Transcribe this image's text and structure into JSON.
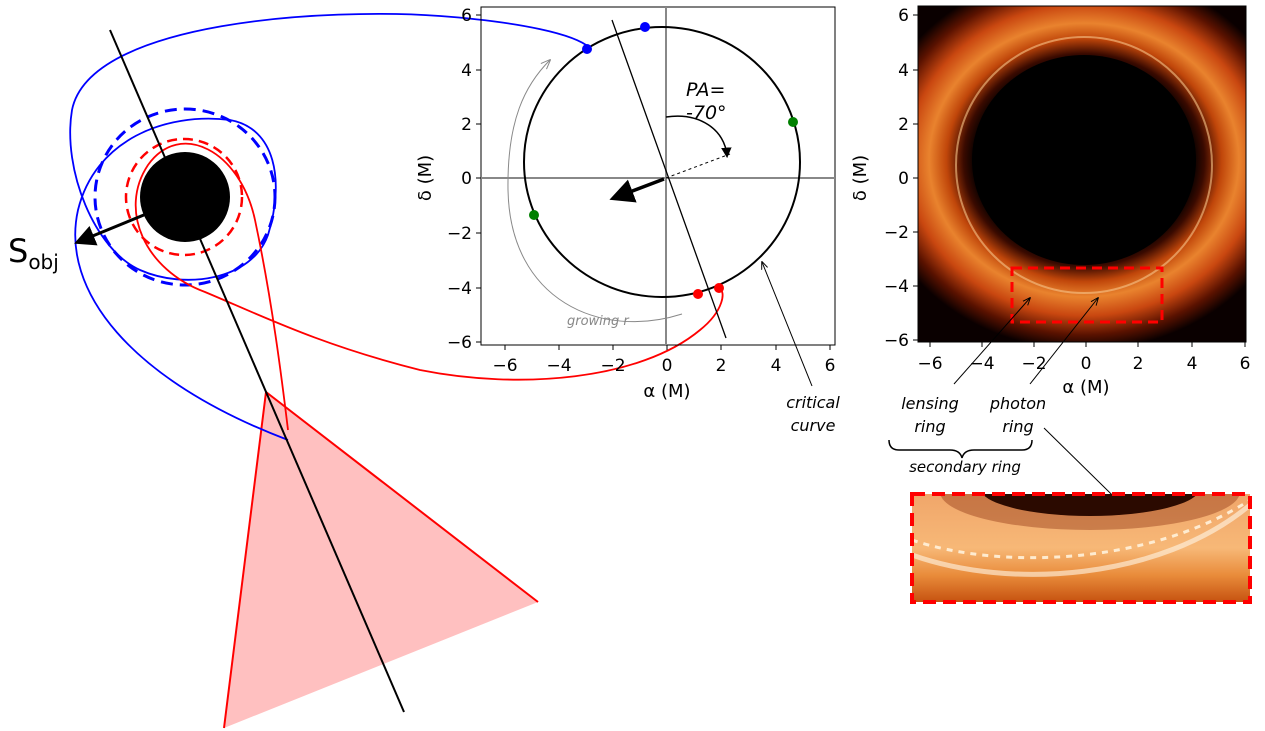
{
  "left_diagram": {
    "spin_label_base": "S",
    "spin_label_sub": "obj"
  },
  "center_plot": {
    "xlabel": "α (M)",
    "ylabel": "δ (M)",
    "x_ticks": [
      "−6",
      "−4",
      "−2",
      "0",
      "2",
      "4",
      "6"
    ],
    "y_ticks": [
      "6",
      "4",
      "2",
      "0",
      "−2",
      "−4",
      "−6"
    ],
    "pa_label_line1": "PA=",
    "pa_label_line2": "-70°",
    "growing_label": "growing r",
    "critical_label_line1": "critical",
    "critical_label_line2": "curve",
    "point_colors": [
      "#0000ff",
      "#008000",
      "#ff0000"
    ]
  },
  "right_image": {
    "xlabel": "α (M)",
    "ylabel": "δ (M)",
    "x_ticks": [
      "−6",
      "−4",
      "−2",
      "0",
      "2",
      "4",
      "6"
    ],
    "y_ticks": [
      "6",
      "4",
      "2",
      "0",
      "−2",
      "−4",
      "−6"
    ],
    "lensing_line1": "lensing",
    "lensing_line2": "ring",
    "photon_line1": "photon",
    "photon_line2": "ring",
    "secondary_label": "secondary ring"
  }
}
